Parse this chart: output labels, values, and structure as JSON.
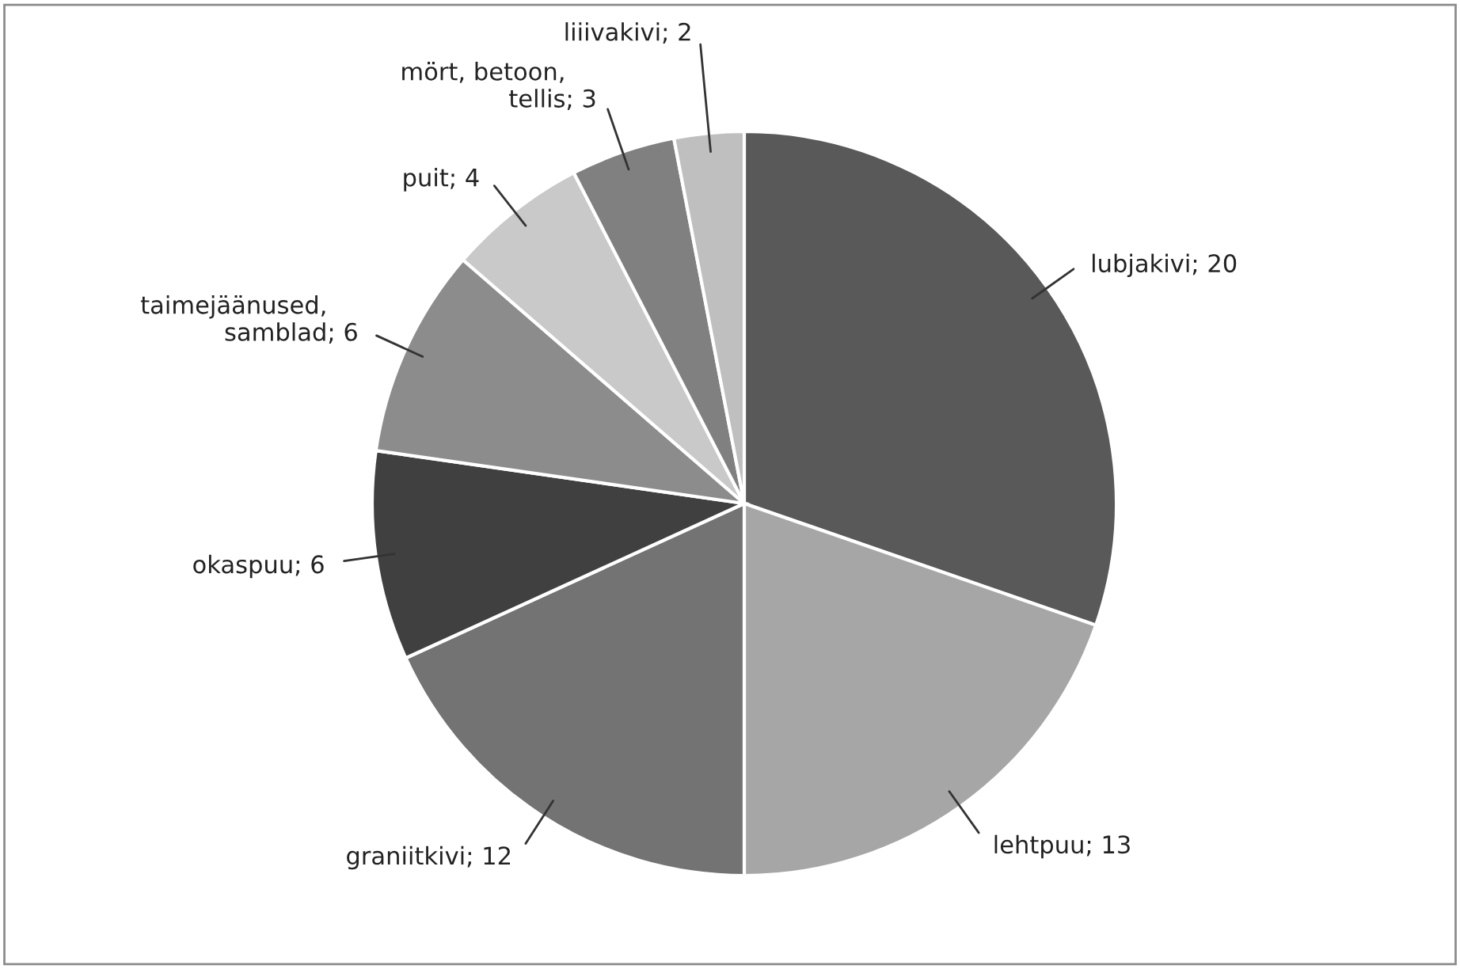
{
  "chart_data": {
    "type": "pie",
    "categories": [
      "lubjakivi",
      "lehtpuu",
      "graniitkivi",
      "okaspuu",
      "taimejäänused,\nsamblad",
      "puit",
      "mört, betoon,\ntellis",
      "liiivakivi"
    ],
    "values": [
      20,
      13,
      12,
      6,
      6,
      4,
      3,
      2
    ],
    "colors": [
      "#595959",
      "#a6a6a6",
      "#737373",
      "#404040",
      "#8c8c8c",
      "#c9c9c9",
      "#808080",
      "#bfbfbf"
    ],
    "value_labels": [
      "; 20",
      "; 13",
      "; 12",
      "; 6",
      "; 6",
      "; 4",
      "; 3",
      "; 2"
    ],
    "legend": false
  }
}
